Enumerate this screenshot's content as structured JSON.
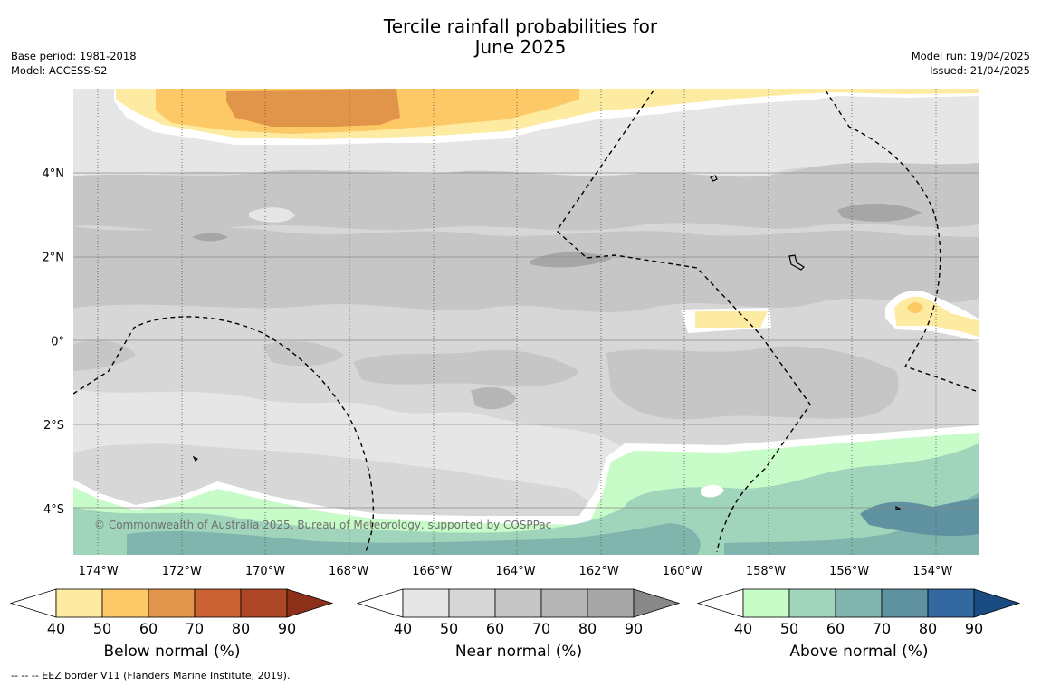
{
  "header": {
    "title_line1": "Tercile rainfall probabilities for",
    "title_line2": "June 2025",
    "base_period": "Base period: 1981-2018",
    "model": "Model: ACCESS-S2",
    "model_run": "Model run: 19/04/2025",
    "issued": "Issued: 21/04/2025"
  },
  "map": {
    "lon_range": [
      -174.6,
      -152.9
    ],
    "lat_range": [
      -5.1,
      6.0
    ],
    "lon_ticks": [
      {
        "value": -174,
        "label": "174°W"
      },
      {
        "value": -172,
        "label": "172°W"
      },
      {
        "value": -170,
        "label": "170°W"
      },
      {
        "value": -168,
        "label": "168°W"
      },
      {
        "value": -166,
        "label": "166°W"
      },
      {
        "value": -164,
        "label": "164°W"
      },
      {
        "value": -162,
        "label": "162°W"
      },
      {
        "value": -160,
        "label": "160°W"
      },
      {
        "value": -158,
        "label": "158°W"
      },
      {
        "value": -156,
        "label": "156°W"
      },
      {
        "value": -154,
        "label": "154°W"
      }
    ],
    "lat_ticks": [
      {
        "value": 4,
        "label": "4°N"
      },
      {
        "value": 2,
        "label": "2°N"
      },
      {
        "value": 0,
        "label": "0°"
      },
      {
        "value": -2,
        "label": "2°S"
      },
      {
        "value": -4,
        "label": "4°S"
      }
    ],
    "copyright": "© Commonwealth of Australia 2025, Bureau of Meteorology, supported by COSPPac",
    "colors": {
      "near": [
        "#e6e6e6",
        "#d7d7d7",
        "#c6c6c6",
        "#b5b5b5",
        "#a6a6a6",
        "#888888"
      ],
      "below": [
        "#fdeba1",
        "#fdc866",
        "#e1954a",
        "#cb6234",
        "#ad4725",
        "#8d3019"
      ],
      "above": [
        "#c7fbc8",
        "#a0d5bc",
        "#80b5ae",
        "#5e92a0",
        "#3468a0",
        "#1a4c82"
      ]
    }
  },
  "colorbars": [
    {
      "name": "below",
      "label": "Below normal (%)",
      "ticks": [
        "40",
        "50",
        "60",
        "70",
        "80",
        "90"
      ]
    },
    {
      "name": "near",
      "label": "Near normal (%)",
      "ticks": [
        "40",
        "50",
        "60",
        "70",
        "80",
        "90"
      ]
    },
    {
      "name": "above",
      "label": "Above normal (%)",
      "ticks": [
        "40",
        "50",
        "60",
        "70",
        "80",
        "90"
      ]
    }
  ],
  "footnote": "--  --  -- EEZ border V11 (Flanders Marine Institute, 2019)."
}
